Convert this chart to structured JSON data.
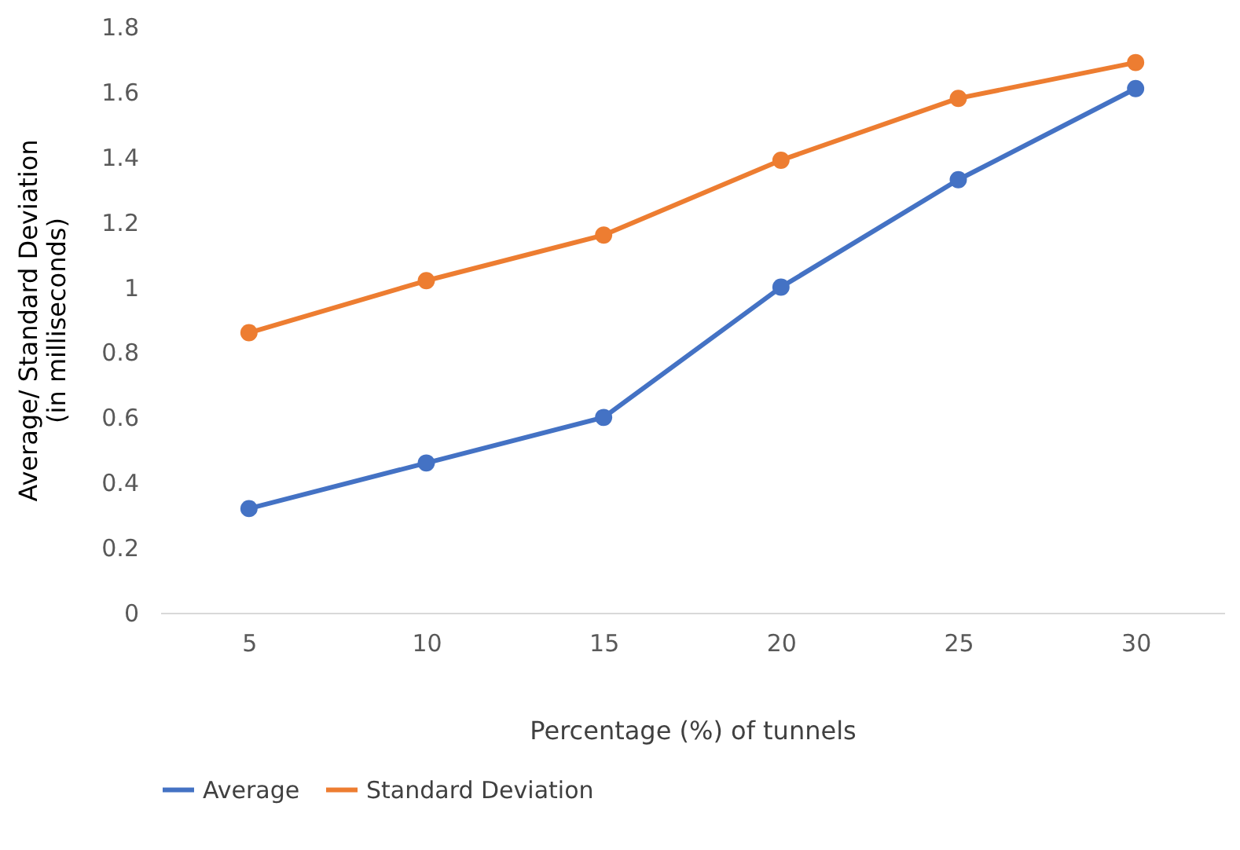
{
  "chart_data": {
    "type": "line",
    "xlabel": "Percentage (%) of tunnels",
    "ylabel": "Average/ Standard Deviation\n(in milliseconds)",
    "categories": [
      "5",
      "10",
      "15",
      "20",
      "25",
      "30"
    ],
    "series": [
      {
        "name": "Average",
        "color": "#4472c4",
        "values": [
          0.32,
          0.46,
          0.6,
          1.0,
          1.33,
          1.61
        ]
      },
      {
        "name": "Standard Deviation",
        "color": "#ed7d31",
        "values": [
          0.86,
          1.02,
          1.16,
          1.39,
          1.58,
          1.69
        ]
      }
    ],
    "ylim": [
      0,
      1.8
    ],
    "yticks": [
      0,
      0.2,
      0.4,
      0.6,
      0.8,
      1,
      1.2,
      1.4,
      1.6,
      1.8
    ],
    "grid": false,
    "legend": "bottom",
    "marker": "circle",
    "line_style": "solid"
  }
}
